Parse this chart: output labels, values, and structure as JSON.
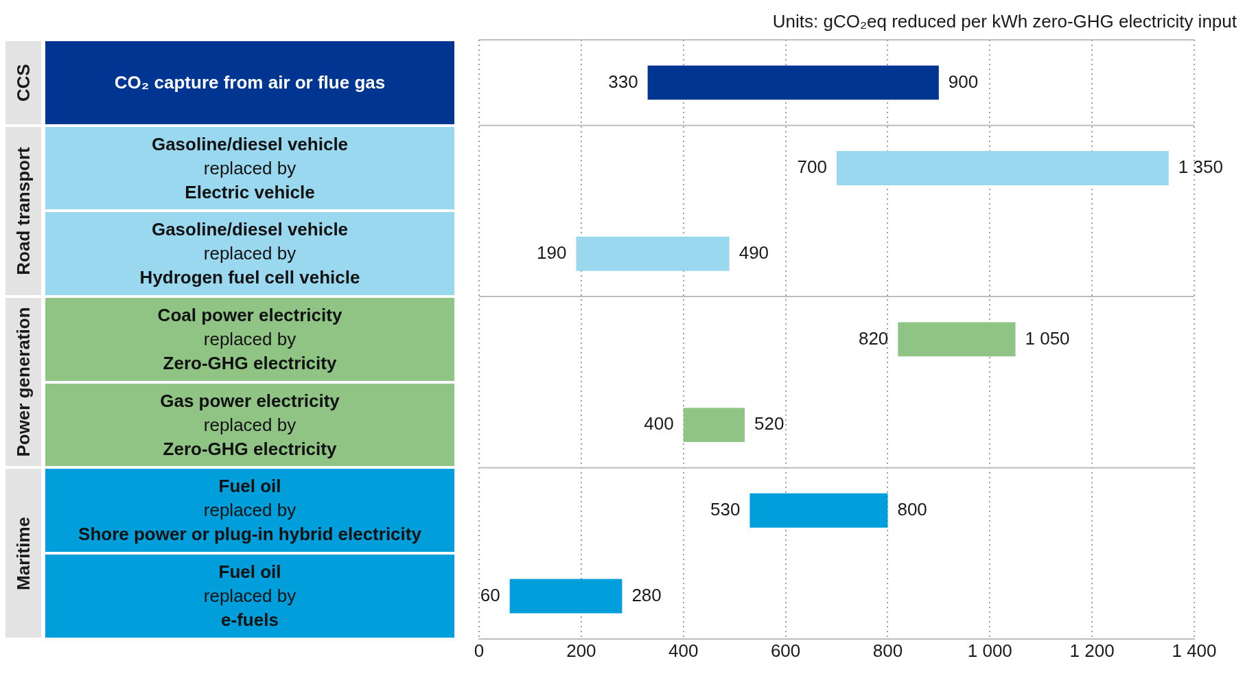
{
  "chart_data": {
    "type": "bar",
    "orientation": "horizontal",
    "xlabel": "Units: gCO₂eq reduced per kWh zero-GHG electricity input",
    "categories": [
      "CO₂ capture from air or flue gas",
      "Gasoline/diesel vehicle\nreplaced by\nElectric vehicle",
      "Gasoline/diesel vehicle\nreplaced by\nHydrogen fuel cell vehicle",
      "Coal power electricity\nreplaced by\nZero-GHG electricity",
      "Gas power electricity\nreplaced by\nZero-GHG electricity",
      "Fuel oil\nreplaced by\nShore power or plug-in hybrid electricity",
      "Fuel oil\nreplaced by\ne-fuels"
    ],
    "base": [
      330,
      700,
      190,
      820,
      400,
      530,
      60
    ],
    "values": [
      570,
      650,
      300,
      230,
      120,
      270,
      220
    ],
    "colors": [
      "#003591",
      "#9ad8f0",
      "#9ad8f0",
      "#8fc485",
      "#8fc485",
      "#009fdb",
      "#009fdb"
    ],
    "xlim": [
      0,
      1400
    ],
    "xticks": [
      0,
      200,
      400,
      600,
      800,
      {
        "value": 1000,
        "label": "1 000"
      },
      {
        "value": 1200,
        "label": "1 200"
      },
      {
        "value": 1400,
        "label": "1 400"
      }
    ],
    "grid": "x",
    "annotations": [
      "CCS",
      "Road transport",
      "Power generation",
      "Maritime",
      {
        "text": "330",
        "x": 330,
        "y": "CO₂ capture from air or flue gas"
      },
      {
        "text": "900",
        "x": 900,
        "y": "CO₂ capture from air or flue gas"
      },
      {
        "text": "700",
        "x": 700,
        "y": "Gasoline/diesel vehicle\nreplaced by\nElectric vehicle"
      },
      {
        "text": "1 350",
        "x": 1350,
        "y": "Gasoline/diesel vehicle\nreplaced by\nElectric vehicle"
      },
      {
        "text": "190",
        "x": 190,
        "y": "Gasoline/diesel vehicle\nreplaced by\nHydrogen fuel cell vehicle"
      },
      {
        "text": "490",
        "x": 490,
        "y": "Gasoline/diesel vehicle\nreplaced by\nHydrogen fuel cell vehicle"
      },
      {
        "text": "820",
        "x": 820,
        "y": "Coal power electricity\nreplaced by\nZero-GHG electricity"
      },
      {
        "text": "1 050",
        "x": 1050,
        "y": "Coal power electricity\nreplaced by\nZero-GHG electricity"
      },
      {
        "text": "400",
        "x": 400,
        "y": "Gas power electricity\nreplaced by\nZero-GHG electricity"
      },
      {
        "text": "520",
        "x": 520,
        "y": "Gas power electricity\nreplaced by\nZero-GHG electricity"
      },
      {
        "text": "530",
        "x": 530,
        "y": "Fuel oil\nreplaced by\nShore power or plug-in hybrid electricity"
      },
      {
        "text": "800",
        "x": 800,
        "y": "Fuel oil\nreplaced by\nShore power or plug-in hybrid electricity"
      },
      {
        "text": "60",
        "x": 60,
        "y": "Fuel oil\nreplaced by\ne-fuels"
      },
      {
        "text": "280",
        "x": 280,
        "y": "Fuel oil\nreplaced by\ne-fuels"
      }
    ]
  }
}
